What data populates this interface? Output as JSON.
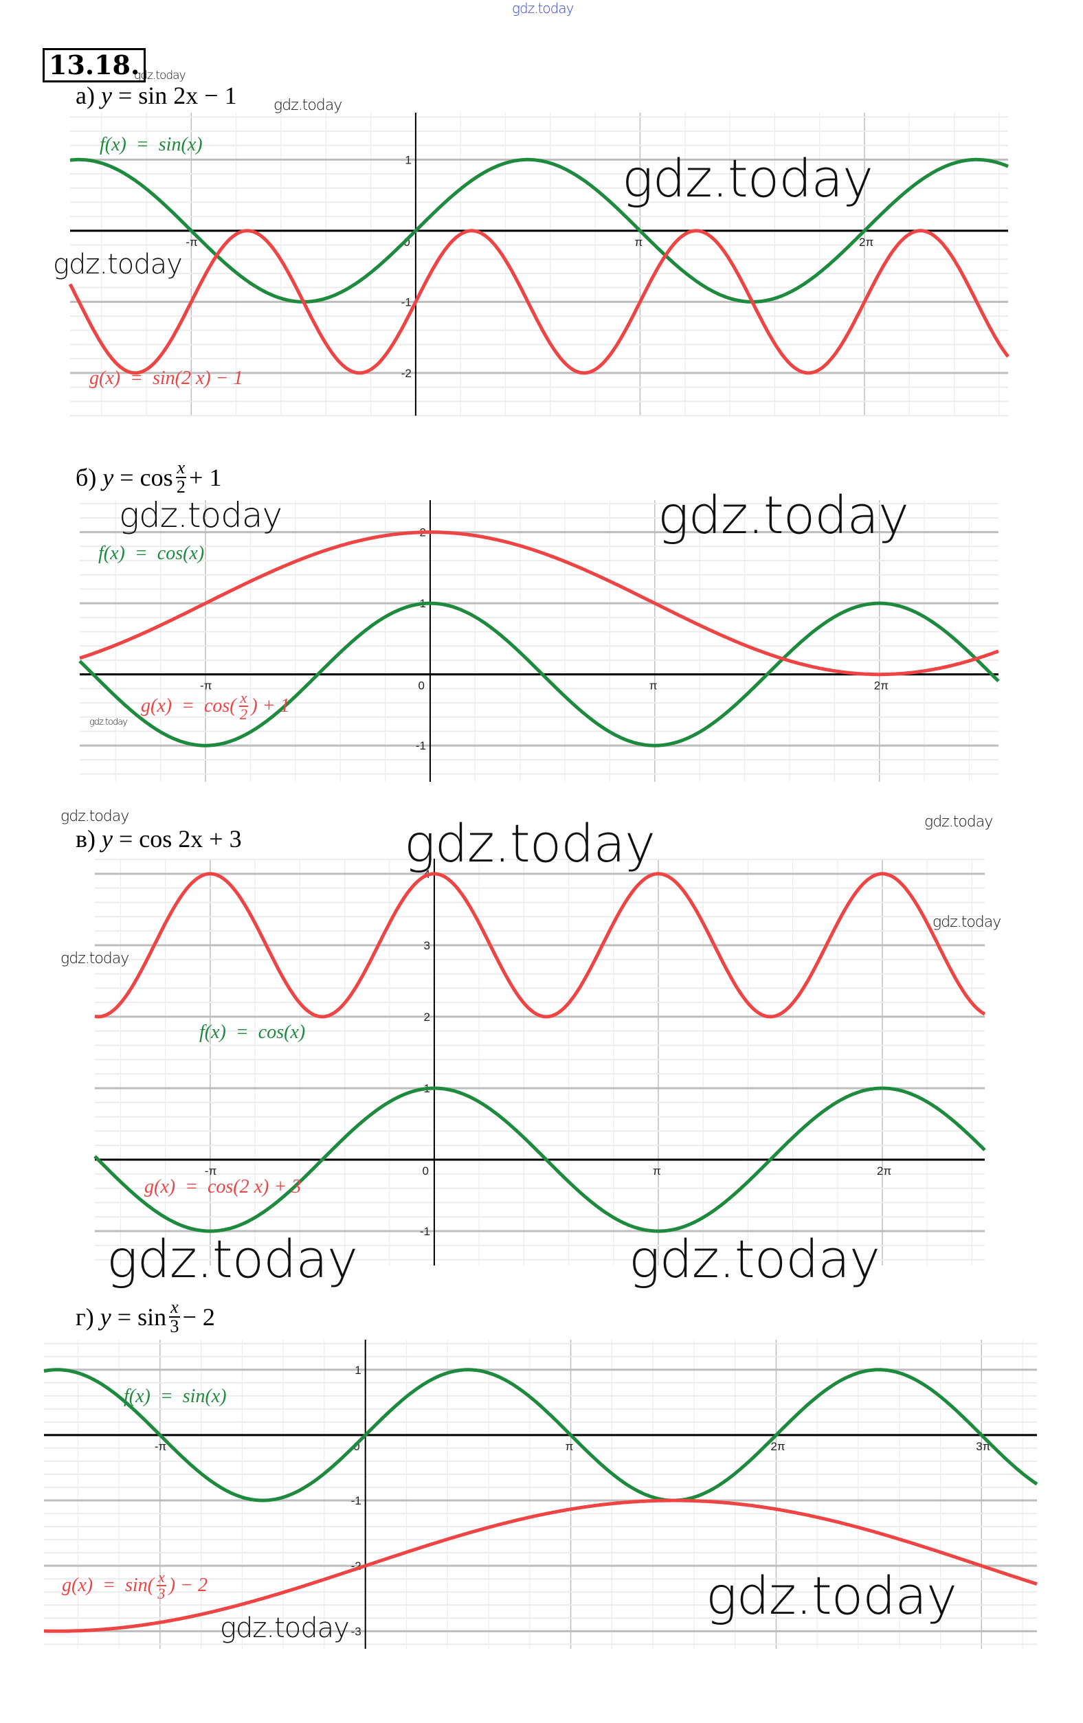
{
  "problem_number": "13.18.",
  "watermark_text": "gdz.today",
  "colors": {
    "f_series": "#1e8a3e",
    "g_series": "#ee4444",
    "axis": "#000000",
    "major_grid": "#bdbdbd",
    "minor_grid": "#ececec",
    "watermark_top": "#3344dd"
  },
  "parts": [
    {
      "letter": "а)",
      "formula_prefix": "y = sin 2x − 1",
      "formula": {
        "lhs": "y",
        "eq": "=",
        "rhs": "sin 2x − 1"
      }
    },
    {
      "letter": "б)",
      "formula": {
        "lhs": "y",
        "eq": "=",
        "fn": "cos",
        "num": "x",
        "den": "2",
        "tail": "+ 1"
      }
    },
    {
      "letter": "в)",
      "formula": {
        "lhs": "y",
        "eq": "=",
        "rhs": "cos 2x + 3"
      }
    },
    {
      "letter": "г)",
      "formula": {
        "lhs": "y",
        "eq": "=",
        "fn": "sin",
        "num": "x",
        "den": "3",
        "tail": "− 2"
      }
    }
  ],
  "chart_data": [
    {
      "type": "line",
      "x_unit": "π",
      "xlim": [
        -1.54,
        2.64
      ],
      "ylim": [
        -2.6,
        1.66
      ],
      "grid": true,
      "x_ticks": [
        {
          "v": -1,
          "label": "-π"
        },
        {
          "v": 0,
          "label": "0"
        },
        {
          "v": 1,
          "label": "π"
        },
        {
          "v": 2,
          "label": "2π"
        }
      ],
      "y_ticks": [
        {
          "v": 1,
          "label": "1"
        },
        {
          "v": -1,
          "label": "-1"
        },
        {
          "v": -2,
          "label": "-2"
        }
      ],
      "series": [
        {
          "name": "f(x) = sin(x)",
          "fn": "sin",
          "k": 1,
          "shift": 0,
          "color": "#1e8a3e",
          "label_parts": [
            "f(x)",
            "=",
            "sin(x)"
          ]
        },
        {
          "name": "g(x) = sin(2 x) − 1",
          "fn": "sin",
          "k": 2,
          "shift": -1,
          "color": "#ee4444",
          "label_parts": [
            "g(x)",
            "=",
            "sin(2 x) − 1"
          ]
        }
      ]
    },
    {
      "type": "line",
      "x_unit": "π",
      "xlim": [
        -1.56,
        2.53
      ],
      "ylim": [
        -1.51,
        2.45
      ],
      "grid": true,
      "x_ticks": [
        {
          "v": -1,
          "label": "-π"
        },
        {
          "v": 0,
          "label": "0"
        },
        {
          "v": 1,
          "label": "π"
        },
        {
          "v": 2,
          "label": "2π"
        }
      ],
      "y_ticks": [
        {
          "v": 2,
          "label": "2"
        },
        {
          "v": 1,
          "label": "1"
        },
        {
          "v": -1,
          "label": "-1"
        }
      ],
      "series": [
        {
          "name": "f(x) = cos(x)",
          "fn": "cos",
          "k": 1,
          "shift": 0,
          "color": "#1e8a3e",
          "label_parts": [
            "f(x)",
            "=",
            "cos(x)"
          ]
        },
        {
          "name": "g(x) = cos(x/2) + 1",
          "fn": "cos",
          "k": 0.5,
          "shift": 1,
          "color": "#ee4444",
          "label_parts": [
            "g(x)",
            "=",
            "cos",
            "x",
            "2",
            "+ 1"
          ]
        }
      ]
    },
    {
      "type": "line",
      "x_unit": "π",
      "xlim": [
        -1.515,
        2.457
      ],
      "ylim": [
        -1.48,
        4.21
      ],
      "grid": true,
      "x_ticks": [
        {
          "v": -1,
          "label": "-π"
        },
        {
          "v": 0,
          "label": "0"
        },
        {
          "v": 1,
          "label": "π"
        },
        {
          "v": 2,
          "label": "2π"
        }
      ],
      "y_ticks": [
        {
          "v": 4,
          "label": "4"
        },
        {
          "v": 3,
          "label": "3"
        },
        {
          "v": 2,
          "label": "2"
        },
        {
          "v": 1,
          "label": "1"
        },
        {
          "v": -1,
          "label": "-1"
        }
      ],
      "series": [
        {
          "name": "f(x) = cos(x)",
          "fn": "cos",
          "k": 1,
          "shift": 0,
          "color": "#1e8a3e",
          "label_parts": [
            "f(x)",
            "=",
            "cos(x)"
          ]
        },
        {
          "name": "g(x) = cos(2 x) + 3",
          "fn": "cos",
          "k": 2,
          "shift": 3,
          "color": "#ee4444",
          "label_parts": [
            "g(x)",
            "=",
            "cos(2 x) + 3"
          ]
        }
      ]
    },
    {
      "type": "line",
      "x_unit": "π",
      "xlim": [
        -1.565,
        3.27
      ],
      "ylim": [
        -3.27,
        1.46
      ],
      "grid": true,
      "x_ticks": [
        {
          "v": -1,
          "label": "-π"
        },
        {
          "v": 0,
          "label": "0"
        },
        {
          "v": 1,
          "label": "π"
        },
        {
          "v": 2,
          "label": "2π"
        },
        {
          "v": 3,
          "label": "3π"
        }
      ],
      "y_ticks": [
        {
          "v": 1,
          "label": "1"
        },
        {
          "v": -1,
          "label": "-1"
        },
        {
          "v": -2,
          "label": "-2"
        },
        {
          "v": -3,
          "label": "-3"
        }
      ],
      "series": [
        {
          "name": "f(x) = sin(x)",
          "fn": "sin",
          "k": 1,
          "shift": 0,
          "color": "#1e8a3e",
          "label_parts": [
            "f(x)",
            "=",
            "sin(x)"
          ]
        },
        {
          "name": "g(x) = sin(x/3) − 2",
          "fn": "sin",
          "k": 0.3333333,
          "shift": -2,
          "color": "#ee4444",
          "label_parts": [
            "g(x)",
            "=",
            "sin",
            "x",
            "3",
            "− 2"
          ]
        }
      ]
    }
  ]
}
